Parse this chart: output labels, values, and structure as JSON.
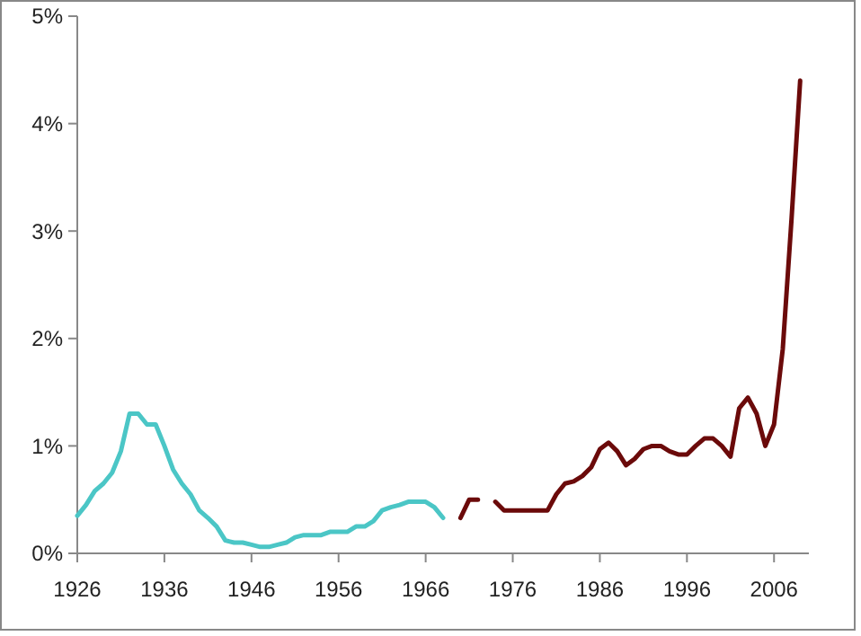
{
  "chart_data": {
    "type": "line",
    "x": [
      1926,
      1927,
      1928,
      1929,
      1930,
      1931,
      1932,
      1933,
      1934,
      1935,
      1936,
      1937,
      1938,
      1939,
      1940,
      1941,
      1942,
      1943,
      1944,
      1945,
      1946,
      1947,
      1948,
      1949,
      1950,
      1951,
      1952,
      1953,
      1954,
      1955,
      1956,
      1957,
      1958,
      1959,
      1960,
      1961,
      1962,
      1963,
      1964,
      1965,
      1966,
      1967,
      1968,
      1969,
      1970,
      1971,
      1972,
      1973,
      1974,
      1975,
      1976,
      1977,
      1978,
      1979,
      1980,
      1981,
      1982,
      1983,
      1984,
      1985,
      1986,
      1987,
      1988,
      1989,
      1990,
      1991,
      1992,
      1993,
      1994,
      1995,
      1996,
      1997,
      1998,
      1999,
      2000,
      2001,
      2002,
      2003,
      2004,
      2005,
      2006,
      2007,
      2008,
      2009
    ],
    "series": [
      {
        "color": "#4bc6c6",
        "values": [
          0.35,
          0.45,
          0.58,
          0.65,
          0.75,
          0.95,
          1.3,
          1.3,
          1.2,
          1.2,
          1.0,
          0.78,
          0.65,
          0.55,
          0.4,
          0.33,
          0.25,
          0.12,
          0.1,
          0.1,
          0.08,
          0.06,
          0.06,
          0.08,
          0.1,
          0.15,
          0.17,
          0.17,
          0.17,
          0.2,
          0.2,
          0.2,
          0.25,
          0.25,
          0.3,
          0.4,
          0.43,
          0.45,
          0.48,
          0.48,
          0.48,
          0.43,
          0.33,
          null,
          null,
          null,
          null,
          null,
          null,
          null,
          null,
          null,
          null,
          null,
          null,
          null,
          null,
          null,
          null,
          null,
          null,
          null,
          null,
          null,
          null,
          null,
          null,
          null,
          null,
          null,
          null,
          null,
          null,
          null,
          null,
          null,
          null,
          null,
          null,
          null,
          null,
          null,
          null,
          null
        ]
      },
      {
        "color": "#6b0a0a",
        "values": [
          null,
          null,
          null,
          null,
          null,
          null,
          null,
          null,
          null,
          null,
          null,
          null,
          null,
          null,
          null,
          null,
          null,
          null,
          null,
          null,
          null,
          null,
          null,
          null,
          null,
          null,
          null,
          null,
          null,
          null,
          null,
          null,
          null,
          null,
          null,
          null,
          null,
          null,
          null,
          null,
          null,
          null,
          null,
          null,
          0.33,
          0.5,
          0.5,
          null,
          0.48,
          0.4,
          0.4,
          0.4,
          0.4,
          0.4,
          0.4,
          0.55,
          0.65,
          0.67,
          0.72,
          0.8,
          0.97,
          1.03,
          0.95,
          0.82,
          0.88,
          0.97,
          1.0,
          1.0,
          0.95,
          0.92,
          0.92,
          1.0,
          1.07,
          1.07,
          1.0,
          0.9,
          1.35,
          1.45,
          1.3,
          1.0,
          1.2,
          1.9,
          3.1,
          4.4
        ]
      }
    ],
    "xlim": [
      1926,
      2010
    ],
    "xticks": [
      1926,
      1936,
      1946,
      1956,
      1966,
      1976,
      1986,
      1996,
      2006
    ],
    "ylim": [
      0,
      5
    ],
    "yticks": [
      {
        "value": 0,
        "label": "0%"
      },
      {
        "value": 1,
        "label": "1%"
      },
      {
        "value": 2,
        "label": "2%"
      },
      {
        "value": 3,
        "label": "3%"
      },
      {
        "value": 4,
        "label": "4%"
      },
      {
        "value": 5,
        "label": "5%"
      }
    ],
    "marker": "none",
    "line_style": "solid"
  }
}
